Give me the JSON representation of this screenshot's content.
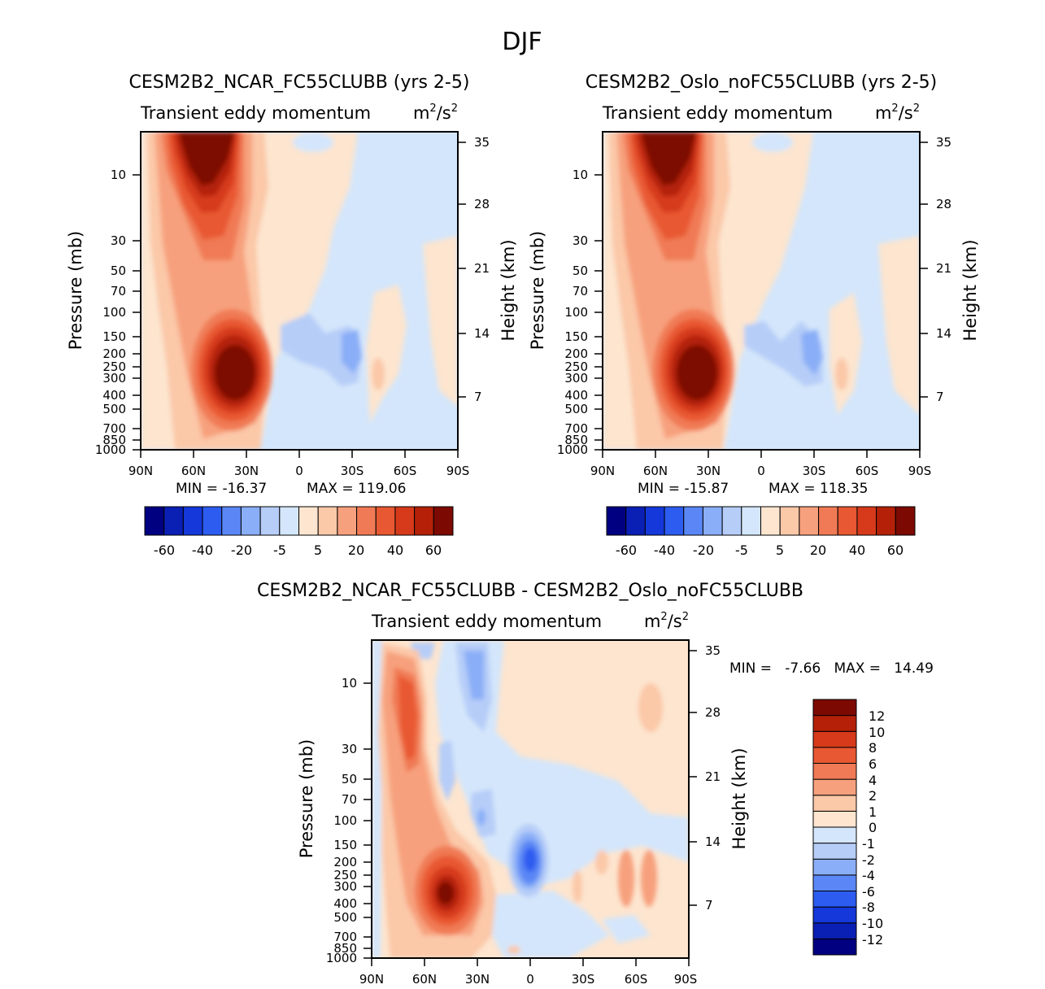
{
  "figure": {
    "title": "DJF"
  },
  "chart_data": [
    {
      "type": "heatmap",
      "title": "CESM2B2_NCAR_FC55CLUBB (yrs 2-5)",
      "subtitle_left": "Transient eddy momentum",
      "units": "m²/s²",
      "units_base": "m",
      "units_exp": "2",
      "units_mid": "/s",
      "ylabel": "Pressure (mb)",
      "ylabel_right": "Height (km)",
      "xticks": [
        "90N",
        "60N",
        "30N",
        "0",
        "30S",
        "60S",
        "90S"
      ],
      "yticks": [
        "10",
        "30",
        "50",
        "70",
        "100",
        "150",
        "200",
        "250",
        "300",
        "400",
        "500",
        "700",
        "850",
        "1000"
      ],
      "yticks_right": [
        "35",
        "28",
        "21",
        "14",
        "7"
      ],
      "min_label": "MIN = -16.37",
      "max_label": "MAX = 119.06",
      "colorbar_labels": [
        "-60",
        "-40",
        "-20",
        "-5",
        "5",
        "20",
        "40",
        "60"
      ],
      "palette": "diverging-16"
    },
    {
      "type": "heatmap",
      "title": "CESM2B2_Oslo_noFC55CLUBB (yrs 2-5)",
      "subtitle_left": "Transient eddy momentum",
      "units": "m²/s²",
      "units_base": "m",
      "units_exp": "2",
      "units_mid": "/s",
      "ylabel": "Pressure (mb)",
      "ylabel_right": "Height (km)",
      "xticks": [
        "90N",
        "60N",
        "30N",
        "0",
        "30S",
        "60S",
        "90S"
      ],
      "yticks": [
        "10",
        "30",
        "50",
        "70",
        "100",
        "150",
        "200",
        "250",
        "300",
        "400",
        "500",
        "700",
        "850",
        "1000"
      ],
      "yticks_right": [
        "35",
        "28",
        "21",
        "14",
        "7"
      ],
      "min_label": "MIN = -15.87",
      "max_label": "MAX = 118.35",
      "colorbar_labels": [
        "-60",
        "-40",
        "-20",
        "-5",
        "5",
        "20",
        "40",
        "60"
      ],
      "palette": "diverging-16"
    },
    {
      "type": "heatmap",
      "title": "CESM2B2_NCAR_FC55CLUBB - CESM2B2_Oslo_noFC55CLUBB",
      "subtitle_left": "Transient eddy momentum",
      "units": "m²/s²",
      "units_base": "m",
      "units_exp": "2",
      "units_mid": "/s",
      "ylabel": "Pressure (mb)",
      "ylabel_right": "Height (km)",
      "xticks": [
        "90N",
        "60N",
        "30N",
        "0",
        "30S",
        "60S",
        "90S"
      ],
      "yticks": [
        "10",
        "30",
        "50",
        "70",
        "100",
        "150",
        "200",
        "250",
        "300",
        "400",
        "500",
        "700",
        "850",
        "1000"
      ],
      "yticks_right": [
        "35",
        "28",
        "21",
        "14",
        "7"
      ],
      "minmax_label": "MIN =   -7.66   MAX =   14.49",
      "colorbar_labels": [
        "12",
        "10",
        "8",
        "6",
        "4",
        "2",
        "1",
        "0",
        "-1",
        "-2",
        "-4",
        "-6",
        "-8",
        "-10",
        "-12"
      ],
      "palette": "diverging-16"
    }
  ],
  "colors": {
    "diverging-16": [
      "#000080",
      "#0a1fb3",
      "#1438d9",
      "#2d5cf0",
      "#5a87f5",
      "#8aaef7",
      "#b6cdf8",
      "#d4e6fb",
      "#fde5cf",
      "#fbc8a8",
      "#f7a07d",
      "#f07a55",
      "#e85832",
      "#d63a1b",
      "#b42108",
      "#7d0a02"
    ]
  }
}
